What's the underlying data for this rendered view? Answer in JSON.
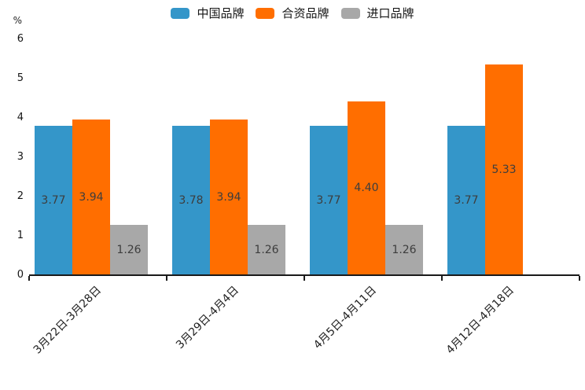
{
  "unit_label": "%",
  "chart_data": {
    "type": "bar",
    "title": "",
    "xlabel": "",
    "ylabel": "%",
    "categories": [
      "3月22日-3月28日",
      "3月29日-4月4日",
      "4月5日-4月11日",
      "4月12日-4月18日"
    ],
    "series": [
      {
        "name": "中国品牌",
        "color": "#3496c9",
        "values": [
          3.77,
          3.78,
          3.77,
          3.77
        ],
        "labels": [
          "3.77",
          "3.78",
          "3.77",
          "3.77"
        ]
      },
      {
        "name": "合资品牌",
        "color": "#ff6e00",
        "values": [
          3.94,
          3.94,
          4.4,
          5.33
        ],
        "labels": [
          "3.94",
          "3.94",
          "4.40",
          "5.33"
        ]
      },
      {
        "name": "进口品牌",
        "color": "#a8a8a8",
        "values": [
          1.26,
          1.26,
          1.26,
          null
        ],
        "labels": [
          "1.26",
          "1.26",
          "1.26",
          null
        ]
      }
    ],
    "yticks": [
      0,
      1,
      2,
      3,
      4,
      5,
      6
    ],
    "ylim": [
      0,
      6
    ],
    "grid": false,
    "legend_position": "top",
    "bar_label_position": "inside-center",
    "xlabel_rotation_deg": 45
  },
  "colors": {
    "axis": "#1a1a1a",
    "value_label": "#3d3d3d",
    "tick_label": "#141414",
    "background": "#ffffff"
  }
}
